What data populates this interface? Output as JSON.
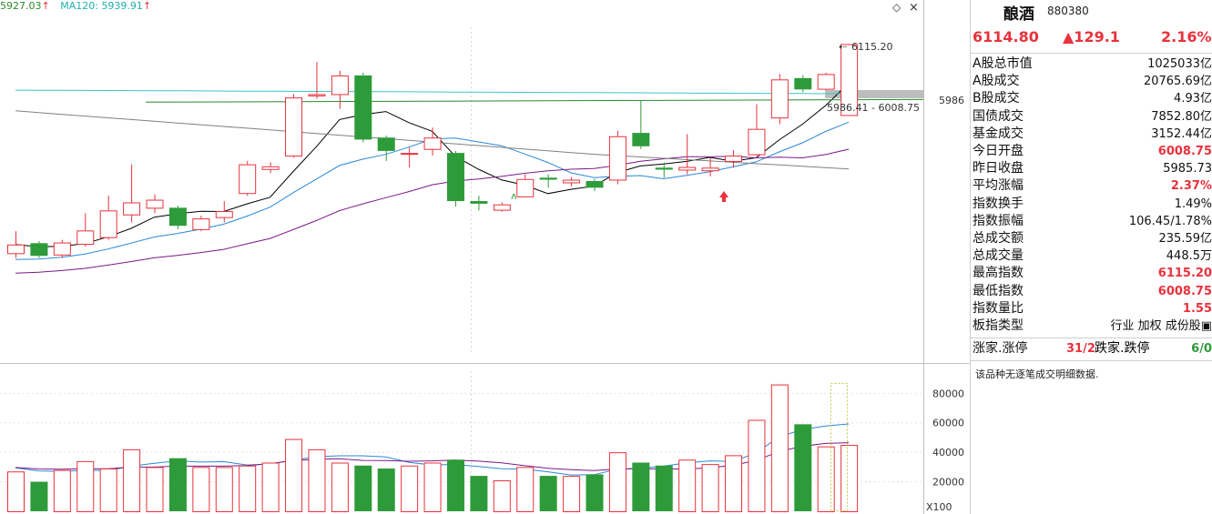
{
  "ma_legend": [
    {
      "text": "5927.03",
      "color": "#2b8a2b",
      "arrow": "↑"
    },
    {
      "text": "MA120: 5939.91",
      "color": "#1fb0b0",
      "arrow": "↑"
    }
  ],
  "chart_icons": {
    "diamond": "◇",
    "close": "×"
  },
  "chart_labels": {
    "high_label": "6115.20",
    "range_label": "5986.41 - 6008.75",
    "price_axis_label": "5986",
    "volume_multiplier": "X100"
  },
  "colors": {
    "up": "#e8323c",
    "down": "#2e9b3a",
    "ma5": "#000000",
    "ma10": "#2a88d8",
    "ma20": "#7b1a86",
    "ma60": "#808080",
    "ma120": "#3cc4c4"
  },
  "chart_data": {
    "type": "candlestick",
    "price_axis": {
      "range": [
        5650,
        6140
      ],
      "labels": [
        5986
      ]
    },
    "volume_axis": {
      "range": [
        0,
        95000
      ],
      "ticks": [
        20000,
        40000,
        60000,
        80000
      ],
      "multiplier": "X100"
    },
    "candles": [
      {
        "o": 5802,
        "c": 5815,
        "h": 5835,
        "l": 5795,
        "v": 27000
      },
      {
        "o": 5817,
        "c": 5798,
        "h": 5820,
        "l": 5795,
        "v": 20000
      },
      {
        "o": 5800,
        "c": 5818,
        "h": 5822,
        "l": 5795,
        "v": 28000
      },
      {
        "o": 5816,
        "c": 5836,
        "h": 5862,
        "l": 5812,
        "v": 34000
      },
      {
        "o": 5826,
        "c": 5866,
        "h": 5888,
        "l": 5822,
        "v": 29000
      },
      {
        "o": 5860,
        "c": 5878,
        "h": 5935,
        "l": 5848,
        "v": 42000
      },
      {
        "o": 5870,
        "c": 5882,
        "h": 5890,
        "l": 5862,
        "v": 30000
      },
      {
        "o": 5870,
        "c": 5843,
        "h": 5873,
        "l": 5838,
        "v": 36000
      },
      {
        "o": 5838,
        "c": 5854,
        "h": 5858,
        "l": 5835,
        "v": 30000
      },
      {
        "o": 5856,
        "c": 5865,
        "h": 5880,
        "l": 5848,
        "v": 30000
      },
      {
        "o": 5892,
        "c": 5935,
        "h": 5940,
        "l": 5888,
        "v": 31000
      },
      {
        "o": 5928,
        "c": 5932,
        "h": 5938,
        "l": 5922,
        "v": 33000
      },
      {
        "o": 5948,
        "c": 6035,
        "h": 6040,
        "l": 5945,
        "v": 49000
      },
      {
        "o": 6038,
        "c": 6040,
        "h": 6088,
        "l": 6033,
        "v": 42000
      },
      {
        "o": 6040,
        "c": 6068,
        "h": 6075,
        "l": 6018,
        "v": 33000
      },
      {
        "o": 6068,
        "c": 5972,
        "h": 6072,
        "l": 5968,
        "v": 31000
      },
      {
        "o": 5975,
        "c": 5955,
        "h": 5978,
        "l": 5940,
        "v": 29000
      },
      {
        "o": 5952,
        "c": 5952,
        "h": 5960,
        "l": 5930,
        "v": 31000
      },
      {
        "o": 5958,
        "c": 5975,
        "h": 5990,
        "l": 5948,
        "v": 33000
      },
      {
        "o": 5952,
        "c": 5880,
        "h": 5955,
        "l": 5872,
        "v": 35000
      },
      {
        "o": 5880,
        "c": 5876,
        "h": 5888,
        "l": 5866,
        "v": 24000
      },
      {
        "o": 5867,
        "c": 5875,
        "h": 5878,
        "l": 5864,
        "v": 21000
      },
      {
        "o": 5887,
        "c": 5913,
        "h": 5920,
        "l": 5887,
        "v": 30000
      },
      {
        "o": 5915,
        "c": 5912,
        "h": 5920,
        "l": 5900,
        "v": 24000
      },
      {
        "o": 5908,
        "c": 5912,
        "h": 5916,
        "l": 5902,
        "v": 24000
      },
      {
        "o": 5910,
        "c": 5900,
        "h": 5913,
        "l": 5895,
        "v": 25000
      },
      {
        "o": 5912,
        "c": 5977,
        "h": 5985,
        "l": 5905,
        "v": 40000
      },
      {
        "o": 5982,
        "c": 5962,
        "h": 6030,
        "l": 5958,
        "v": 33000
      },
      {
        "o": 5930,
        "c": 5927,
        "h": 5938,
        "l": 5915,
        "v": 31000
      },
      {
        "o": 5927,
        "c": 5931,
        "h": 5980,
        "l": 5920,
        "v": 35000
      },
      {
        "o": 5926,
        "c": 5930,
        "h": 5944,
        "l": 5917,
        "v": 32000
      },
      {
        "o": 5940,
        "c": 5948,
        "h": 5956,
        "l": 5930,
        "v": 38000
      },
      {
        "o": 5950,
        "c": 5988,
        "h": 6025,
        "l": 5948,
        "v": 62000
      },
      {
        "o": 6005,
        "c": 6062,
        "h": 6070,
        "l": 5995,
        "v": 86000
      },
      {
        "o": 6064,
        "c": 6047,
        "h": 6068,
        "l": 6043,
        "v": 59000
      },
      {
        "o": 6048,
        "c": 6070,
        "h": 6072,
        "l": 6046,
        "v": 44000
      },
      {
        "o": 6008.75,
        "c": 6114.8,
        "h": 6115.2,
        "l": 6008.75,
        "v": 45000
      }
    ]
  },
  "panel": {
    "title": "酿酒",
    "code": "880380",
    "price": "6114.80",
    "change": "▲129.1",
    "percent": "2.16%",
    "rows": [
      {
        "label": "A股总市值",
        "value": "1025033亿",
        "red": false
      },
      {
        "label": "A股成交",
        "value": "20765.69亿",
        "red": false
      },
      {
        "label": "B股成交",
        "value": "4.93亿",
        "red": false
      },
      {
        "label": "国债成交",
        "value": "7852.80亿",
        "red": false
      },
      {
        "label": "基金成交",
        "value": "3152.44亿",
        "red": false
      },
      {
        "label": "今日开盘",
        "value": "6008.75",
        "red": true
      },
      {
        "label": "昨日收盘",
        "value": "5985.73",
        "red": false
      },
      {
        "label": "平均涨幅",
        "value": "2.37%",
        "red": true
      },
      {
        "label": "指数换手",
        "value": "1.49%",
        "red": false
      },
      {
        "label": "指数振幅",
        "value": "106.45/1.78%",
        "red": false
      },
      {
        "label": "总成交额",
        "value": "235.59亿",
        "red": false
      },
      {
        "label": "总成交量",
        "value": "448.5万",
        "red": false
      },
      {
        "label": "最高指数",
        "value": "6115.20",
        "red": true
      },
      {
        "label": "最低指数",
        "value": "6008.75",
        "red": true
      },
      {
        "label": "指数量比",
        "value": "1.55",
        "red": true
      },
      {
        "label": "板指类型",
        "value": "行业 加权 成份股▣",
        "red": false
      }
    ],
    "limit_row": {
      "up_label": "涨家.涨停",
      "up_value": "31/2",
      "down_label": "跌家.跌停",
      "down_value": "6/0"
    },
    "note": "该品种无逐笔成交明细数据."
  }
}
